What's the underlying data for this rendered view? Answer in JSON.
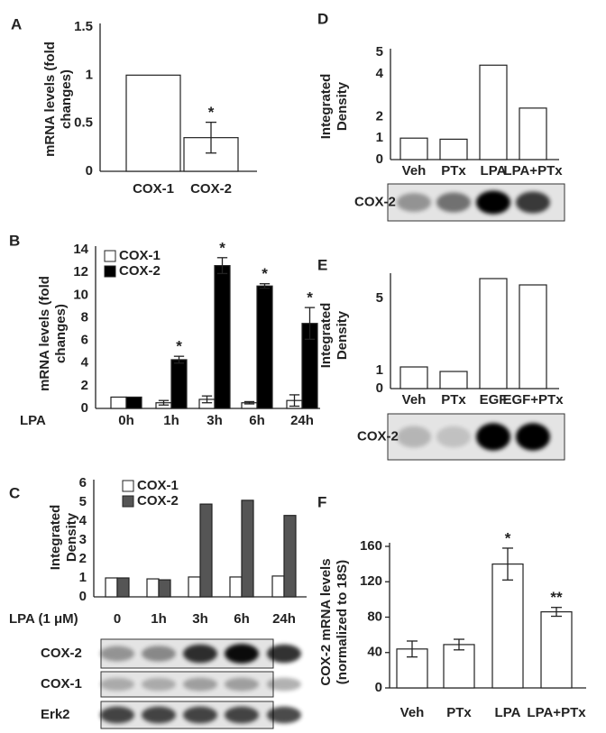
{
  "chart_data": [
    {
      "type": "bar",
      "panel": "A",
      "y_label": [
        "mRNA levels (fold",
        "changes)"
      ],
      "categories": [
        "COX-1",
        "COX-2"
      ],
      "values": [
        1,
        0.35
      ],
      "errors": [
        null,
        0.16
      ],
      "significance": [
        null,
        "*"
      ],
      "color": "#ffffff",
      "ylim": [
        0,
        1.5
      ],
      "yticks": [
        0,
        0.5,
        1,
        1.5
      ]
    },
    {
      "type": "bar",
      "panel": "B",
      "y_label": [
        "mRNA levels (fold",
        "changes)"
      ],
      "x_label": "LPA",
      "categories": [
        "0h",
        "1h",
        "3h",
        "6h",
        "24h"
      ],
      "series": [
        {
          "name": "COX-1",
          "color": "#ffffff",
          "values": [
            1,
            0.5,
            0.8,
            0.5,
            0.7
          ],
          "errors": [
            null,
            0.2,
            0.3,
            0.1,
            0.5
          ]
        },
        {
          "name": "COX-2",
          "color": "#000000",
          "values": [
            1,
            4.3,
            12.6,
            10.8,
            7.5
          ],
          "errors": [
            null,
            0.3,
            0.7,
            0.2,
            1.4
          ],
          "significance": [
            null,
            "*",
            "*",
            "*",
            "*"
          ]
        }
      ],
      "ylim": [
        0,
        14
      ],
      "yticks": [
        0,
        2,
        4,
        6,
        8,
        10,
        12,
        14
      ],
      "legend": "upper left"
    },
    {
      "type": "bar",
      "panel": "C",
      "y_label": [
        "Integrated",
        "Density"
      ],
      "x_label": "LPA (1 μM)",
      "categories": [
        "0",
        "1h",
        "3h",
        "6h",
        "24h"
      ],
      "series": [
        {
          "name": "COX-1",
          "color": "#ffffff",
          "values": [
            1,
            0.95,
            1.05,
            1.05,
            1.1
          ]
        },
        {
          "name": "COX-2",
          "color": "#555555",
          "values": [
            1,
            0.9,
            4.9,
            5.1,
            4.3
          ]
        }
      ],
      "ylim": [
        0,
        6
      ],
      "yticks": [
        0,
        1,
        2,
        3,
        4,
        5,
        6
      ],
      "legend": "upper left",
      "blot_labels": [
        "COX-2",
        "COX-1",
        "Erk2"
      ]
    },
    {
      "type": "bar",
      "panel": "D",
      "y_label": [
        "Integrated",
        "Density"
      ],
      "categories": [
        "Veh",
        "PTx",
        "LPA",
        "LPA+PTx"
      ],
      "values": [
        1,
        0.95,
        4.4,
        2.4
      ],
      "color": "#ffffff",
      "ylim": [
        0,
        5
      ],
      "yticks": [
        0,
        1,
        2,
        4,
        5
      ],
      "blot_labels": [
        "COX-2"
      ]
    },
    {
      "type": "bar",
      "panel": "E",
      "y_label": [
        "Integrated",
        "Density"
      ],
      "categories": [
        "Veh",
        "PTx",
        "EGF",
        "EGF+PTx"
      ],
      "values": [
        1.2,
        0.95,
        6.1,
        5.75
      ],
      "color": "#ffffff",
      "ylim": [
        0,
        6.2
      ],
      "yticks": [
        0,
        1,
        5
      ],
      "blot_labels": [
        "COX-2"
      ]
    },
    {
      "type": "bar",
      "panel": "F",
      "y_label": [
        "COX-2 mRNA levels",
        "(normalized to 18S)"
      ],
      "categories": [
        "Veh",
        "PTx",
        "LPA",
        "LPA+PTx"
      ],
      "values": [
        44,
        49,
        140,
        86
      ],
      "errors": [
        9,
        6,
        18,
        5
      ],
      "significance": [
        null,
        null,
        "*",
        "**"
      ],
      "color": "#ffffff",
      "ylim": [
        0,
        160
      ],
      "yticks": [
        0,
        40,
        80,
        120,
        160
      ]
    }
  ]
}
